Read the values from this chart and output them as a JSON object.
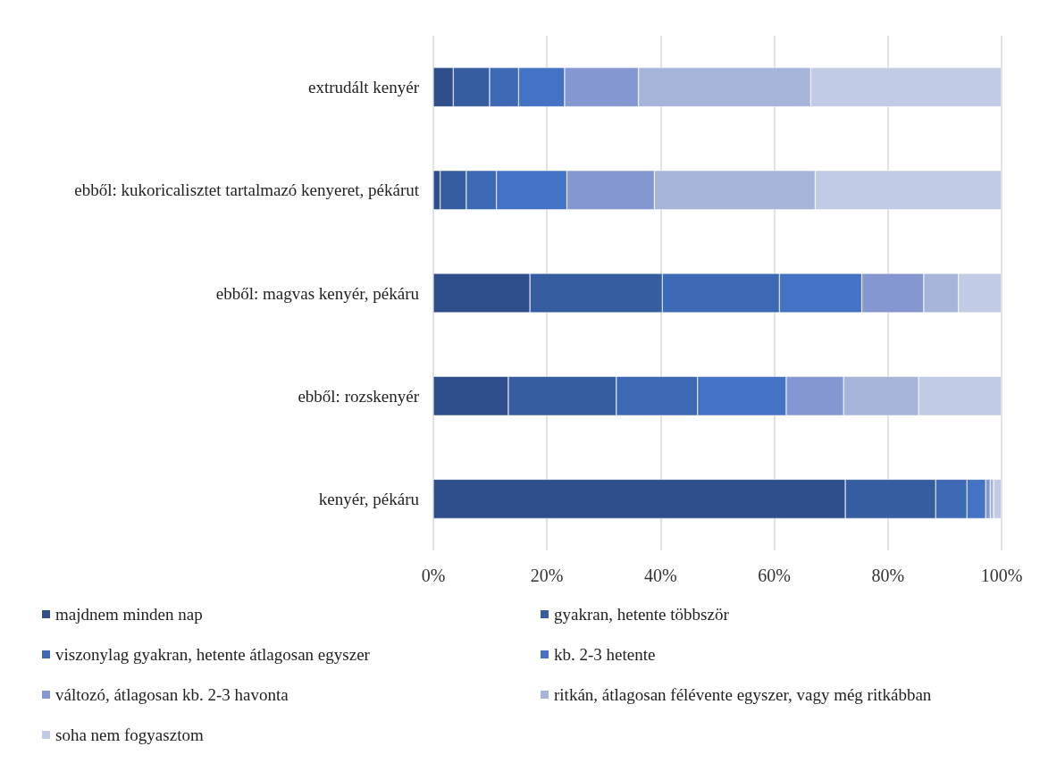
{
  "chart_data": {
    "type": "bar",
    "orientation": "horizontal",
    "stacked": true,
    "categories": [
      "extrudált kenyér",
      "ebből: kukoricalisztet tartalmazó kenyeret, pékárut",
      "ebből: magvas kenyér, pékáru",
      "ebből: rozskenyér",
      "kenyér, pékáru"
    ],
    "series": [
      {
        "name": "majdnem minden nap",
        "color": "#2e4f8c",
        "values": [
          3.5,
          1.2,
          17,
          13.2,
          72.5
        ]
      },
      {
        "name": "gyakran, hetente többször",
        "color": "#355da0",
        "values": [
          6.4,
          4.6,
          23.3,
          19,
          15.9
        ]
      },
      {
        "name": "viszonylag gyakran, hetente átlagosan egyszer",
        "color": "#3c68b4",
        "values": [
          5.1,
          5.3,
          20.6,
          14.3,
          5.5
        ]
      },
      {
        "name": "kb. 2-3 hetente",
        "color": "#4472c4",
        "values": [
          8.1,
          12.4,
          14.5,
          15.6,
          3.3
        ]
      },
      {
        "name": "változó, átlagosan kb. 2-3 havonta",
        "color": "#8497d0",
        "values": [
          13,
          15.4,
          10.9,
          10.1,
          0.8
        ]
      },
      {
        "name": "ritkán, átlagosan félévente egyszer, vagy még ritkábban",
        "color": "#a7b4da",
        "values": [
          30.3,
          28.3,
          6.1,
          13.2,
          0.6
        ]
      },
      {
        "name": "soha nem fogyasztom",
        "color": "#c2cbe5",
        "values": [
          33.6,
          32.8,
          7.6,
          14.6,
          1.4
        ]
      }
    ],
    "xlim": [
      0,
      100
    ],
    "xticks": [
      {
        "value": 0,
        "label": "0%"
      },
      {
        "value": 20,
        "label": "20%"
      },
      {
        "value": 40,
        "label": "40%"
      },
      {
        "value": 60,
        "label": "60%"
      },
      {
        "value": 80,
        "label": "80%"
      },
      {
        "value": 100,
        "label": "100%"
      }
    ],
    "grid": "x",
    "legend": "bottom"
  }
}
